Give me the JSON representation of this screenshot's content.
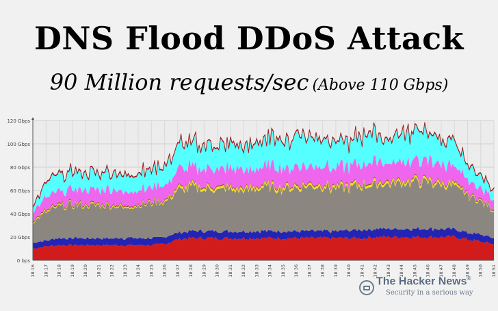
{
  "header": {
    "title": "DNS Flood DDoS Attack",
    "subtitle_main": "90 Million requests/sec",
    "subtitle_paren": "(Above 110 Gbps)"
  },
  "brand": {
    "name": "The Hacker News",
    "tm": "®",
    "tagline": "Security in a serious way",
    "logo_icon": "hacker-news-logo-icon"
  },
  "chart_data": {
    "type": "area",
    "stacked": true,
    "y_ticks": [
      "0 bps",
      "20 Gbps",
      "40 Gbps",
      "60 Gbps",
      "80 Gbps",
      "100 Gbps",
      "120 Gbps"
    ],
    "ylim": [
      0,
      120
    ],
    "x": [
      "18:16",
      "18:17",
      "18:18",
      "18:19",
      "18:20",
      "18:21",
      "18:22",
      "18:23",
      "18:24",
      "18:25",
      "18:26",
      "18:27",
      "18:28",
      "18:29",
      "18:30",
      "18:31",
      "18:32",
      "18:33",
      "18:34",
      "18:35",
      "18:36",
      "18:37",
      "18:38",
      "18:39",
      "18:40",
      "18:41",
      "18:42",
      "18:43",
      "18:44",
      "18:45",
      "18:46",
      "18:47",
      "18:48",
      "18:49",
      "18:50",
      "18:51"
    ],
    "grid": true,
    "series": [
      {
        "color": "#d21c1c",
        "values": [
          10,
          12,
          13,
          13,
          13,
          13,
          13,
          13,
          13,
          13,
          14,
          18,
          19,
          19,
          19,
          19,
          19,
          19,
          19,
          19,
          19,
          19,
          19,
          19,
          19,
          19,
          20,
          20,
          20,
          20,
          20,
          20,
          20,
          18,
          16,
          14
        ]
      },
      {
        "color": "#2424b4",
        "values": [
          5,
          5,
          6,
          6,
          6,
          6,
          6,
          6,
          6,
          6,
          6,
          6,
          6,
          6,
          6,
          6,
          6,
          6,
          6,
          6,
          6,
          6,
          6,
          6,
          7,
          7,
          7,
          7,
          7,
          7,
          7,
          7,
          7,
          6,
          6,
          5
        ]
      },
      {
        "color": "#8c8680",
        "values": [
          18,
          24,
          27,
          28,
          28,
          28,
          28,
          26,
          28,
          30,
          30,
          36,
          37,
          36,
          36,
          36,
          35,
          37,
          37,
          37,
          37,
          38,
          38,
          36,
          36,
          38,
          38,
          38,
          40,
          40,
          40,
          38,
          36,
          32,
          28,
          24
        ]
      },
      {
        "color": "#f0e020",
        "values": [
          1,
          1,
          1,
          1,
          1,
          1,
          1,
          1,
          1,
          1,
          1,
          2,
          2,
          2,
          2,
          2,
          2,
          2,
          2,
          2,
          2,
          2,
          2,
          2,
          2,
          2,
          2,
          2,
          2,
          2,
          2,
          2,
          2,
          1,
          1,
          1
        ]
      },
      {
        "color": "#a0522d",
        "values": [
          1,
          1,
          1,
          1,
          1,
          1,
          1,
          1,
          1,
          1,
          1,
          1,
          1,
          1,
          1,
          1,
          1,
          1,
          1,
          1,
          1,
          1,
          1,
          1,
          1,
          1,
          1,
          1,
          1,
          1,
          1,
          1,
          1,
          1,
          1,
          1
        ]
      },
      {
        "color": "#ee66ee",
        "values": [
          7,
          10,
          11,
          12,
          12,
          12,
          12,
          12,
          12,
          12,
          12,
          15,
          15,
          14,
          14,
          15,
          15,
          15,
          15,
          15,
          15,
          15,
          16,
          15,
          16,
          16,
          16,
          16,
          16,
          16,
          16,
          15,
          14,
          12,
          10,
          8
        ]
      },
      {
        "color": "#55ffff",
        "values": [
          5,
          12,
          14,
          15,
          15,
          15,
          16,
          14,
          15,
          16,
          16,
          22,
          22,
          21,
          20,
          20,
          21,
          22,
          24,
          24,
          25,
          25,
          23,
          22,
          22,
          23,
          24,
          22,
          24,
          25,
          24,
          22,
          20,
          14,
          10,
          8
        ]
      },
      {
        "color": "#c82828",
        "values": [
          0.6,
          0.6,
          0.6,
          0.6,
          0.6,
          0.6,
          0.6,
          0.6,
          0.6,
          0.6,
          0.6,
          0.6,
          0.6,
          0.6,
          0.6,
          0.6,
          0.6,
          0.6,
          0.6,
          0.6,
          0.6,
          0.6,
          0.6,
          0.6,
          0.6,
          0.6,
          0.6,
          0.6,
          0.6,
          0.6,
          0.6,
          0.6,
          0.6,
          0.6,
          0.6,
          0.6
        ]
      }
    ]
  }
}
